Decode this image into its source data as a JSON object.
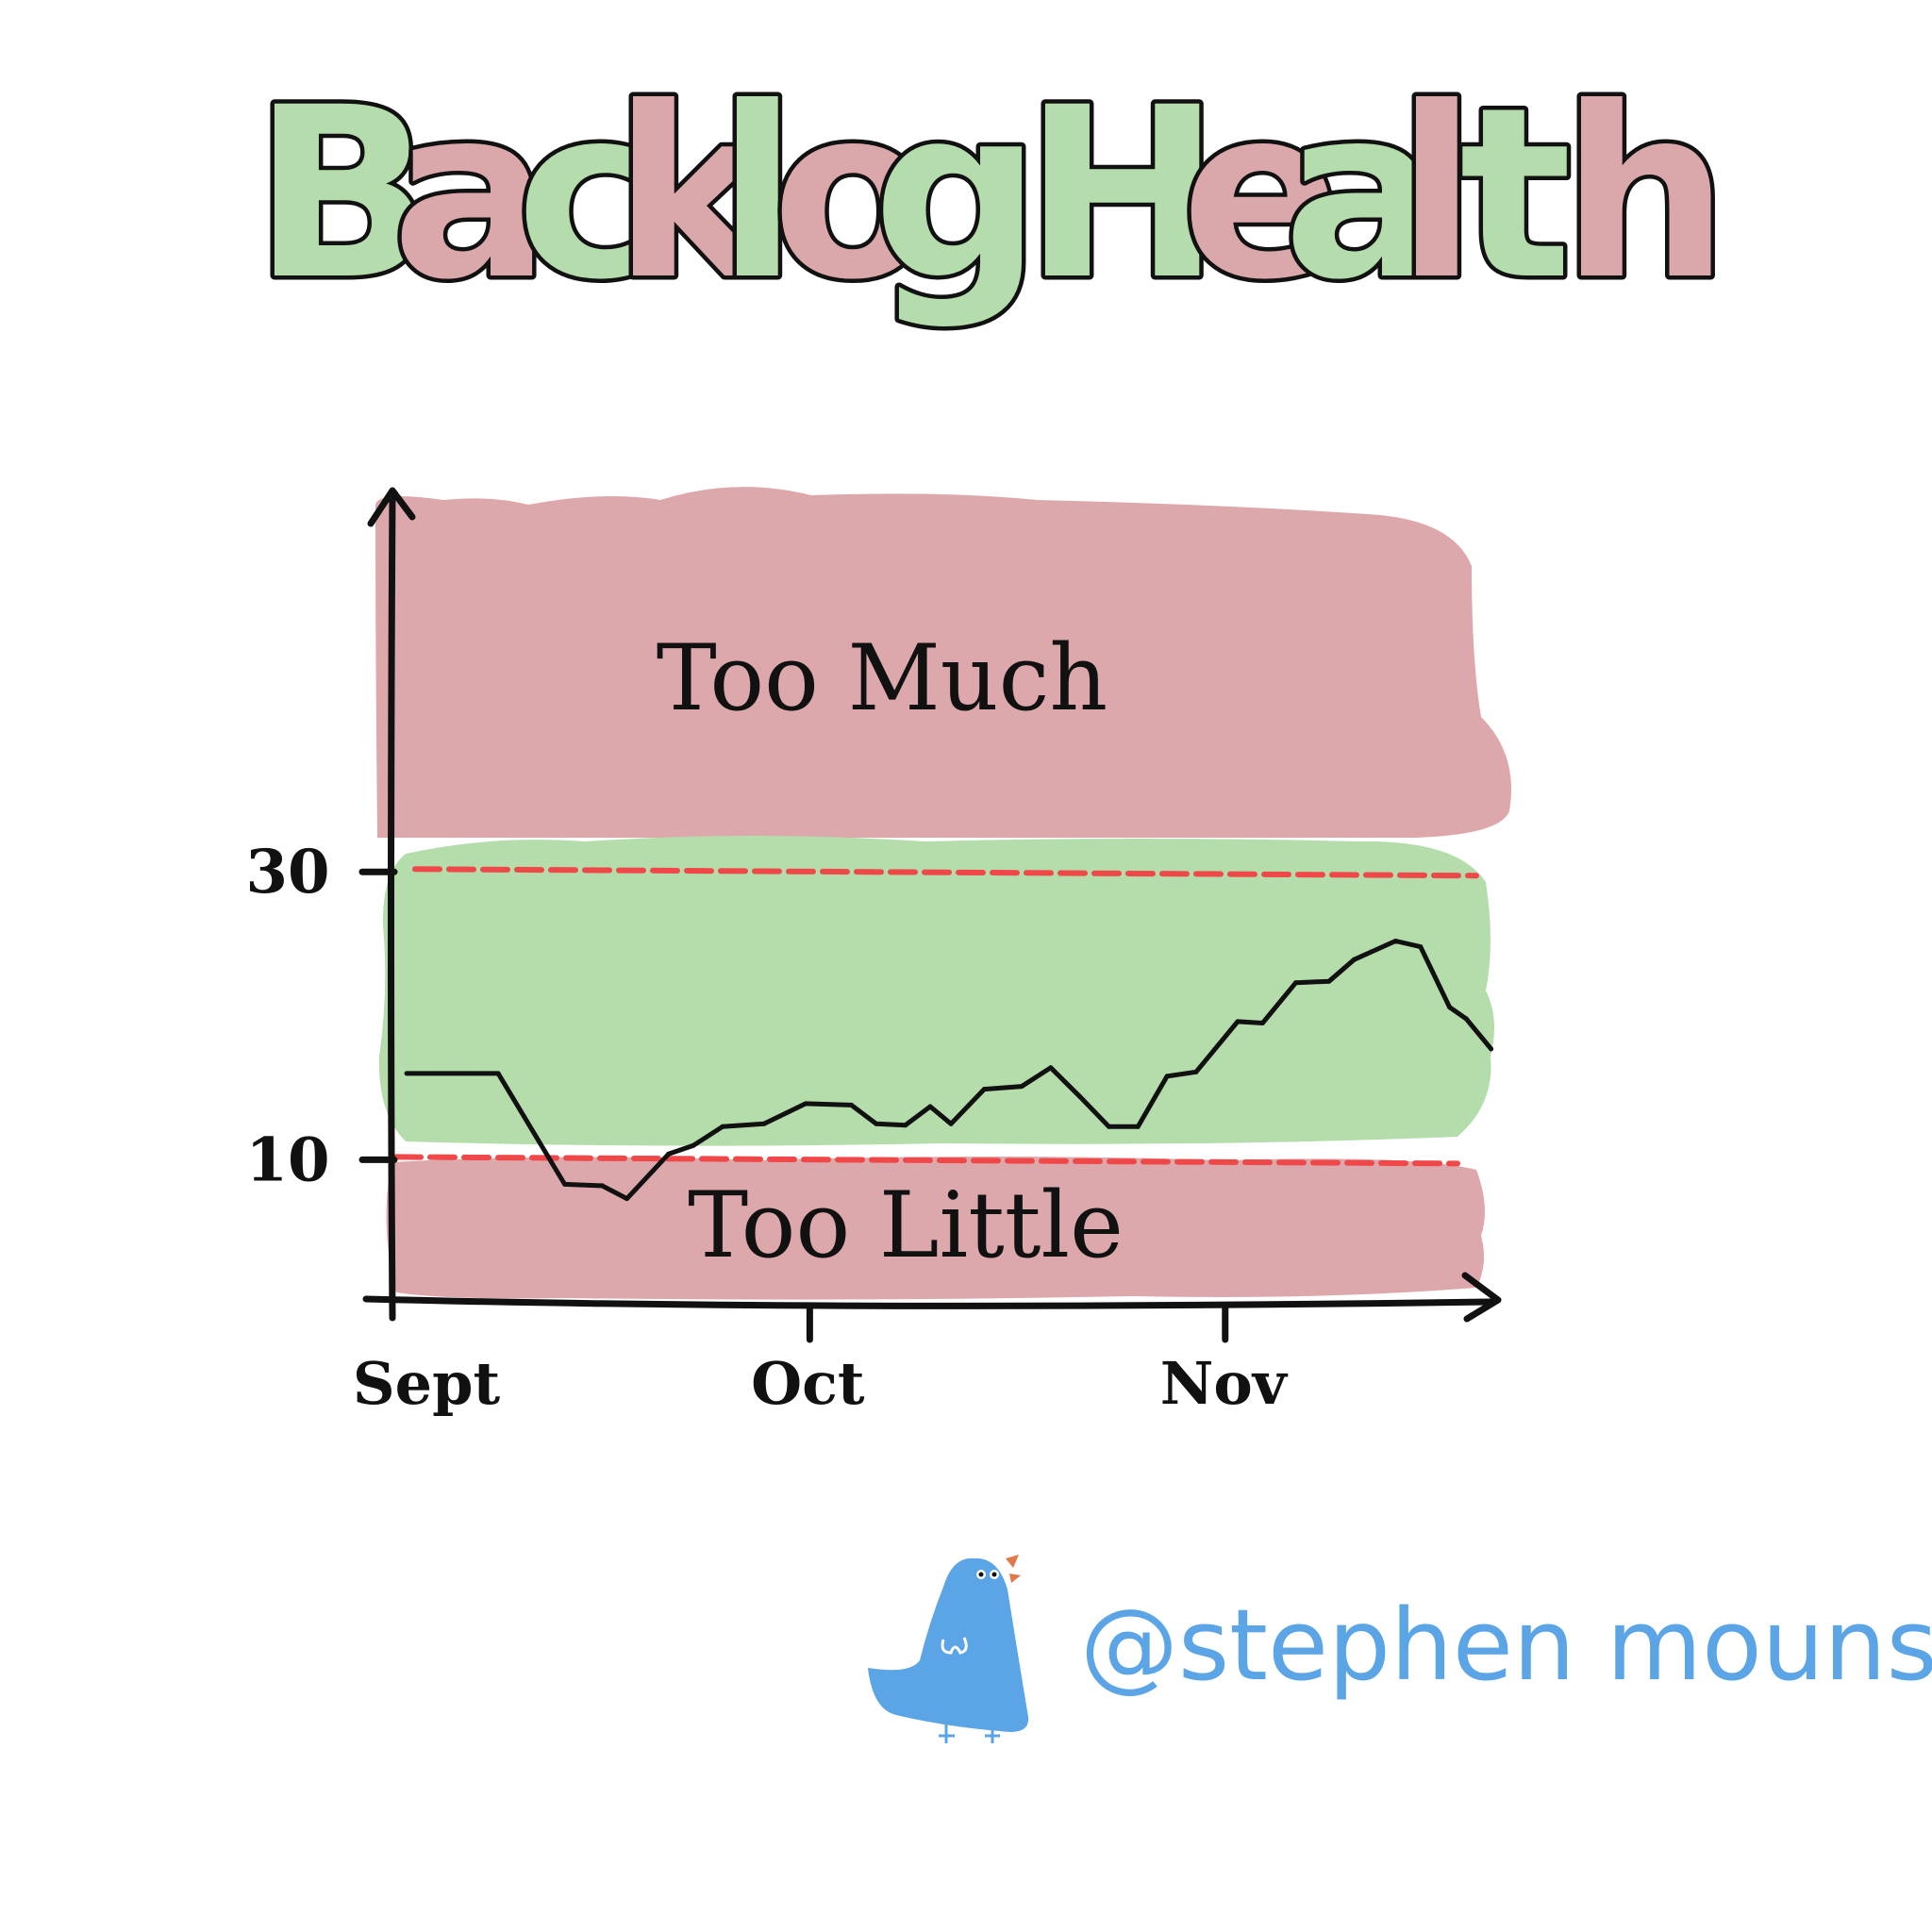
{
  "title": {
    "letters": [
      "B",
      "a",
      "c",
      "k",
      "l",
      "o",
      "g",
      " ",
      "H",
      "e",
      "a",
      "l",
      "t",
      "h"
    ],
    "colors": {
      "green": "#b5dcac",
      "red": "#daa8aa",
      "outline": "#111111"
    }
  },
  "zones": {
    "upper_label": "Too Much",
    "lower_label": "Too Little",
    "colors": {
      "too_much": "#dda8ab",
      "healthy": "#b4ddab",
      "too_little": "#dda8ab",
      "threshold_line": "#f04848"
    }
  },
  "chart_data": {
    "type": "line",
    "title": "Backlog Health",
    "xlabel": "",
    "ylabel": "",
    "x_ticks": [
      "Sept",
      "Oct",
      "Nov"
    ],
    "y_ticks": [
      10,
      30
    ],
    "thresholds": [
      10,
      30
    ],
    "xlim": [
      0,
      2.6
    ],
    "ylim": [
      0,
      58
    ],
    "series": [
      {
        "x": [
          0.03,
          0.25,
          0.41,
          0.5,
          0.56,
          0.66,
          0.72,
          0.79,
          0.89,
          0.99,
          1.1,
          1.16,
          1.23,
          1.29,
          1.34,
          1.42,
          1.51,
          1.58,
          1.65,
          1.72,
          1.79,
          1.86,
          1.93,
          2.03,
          2.09,
          2.17,
          2.25,
          2.31,
          2.41,
          2.47,
          2.54,
          2.58,
          2.64
        ],
        "y": [
          16,
          16,
          8.3,
          8.2,
          7.3,
          10.4,
          11,
          12.3,
          12.5,
          13.9,
          13.8,
          12.5,
          12.4,
          13.7,
          12.5,
          14.9,
          15.1,
          16.4,
          14.4,
          12.3,
          12.3,
          15.8,
          16.1,
          19.6,
          19.5,
          22.3,
          22.4,
          23.9,
          25.2,
          24.8,
          20.6,
          19.8,
          17.7
        ]
      }
    ],
    "line_color": "#111111"
  },
  "credit": {
    "handle": "@stephen mounsey",
    "bird_color": "#5ba4e6",
    "beak_color": "#e0784a"
  }
}
